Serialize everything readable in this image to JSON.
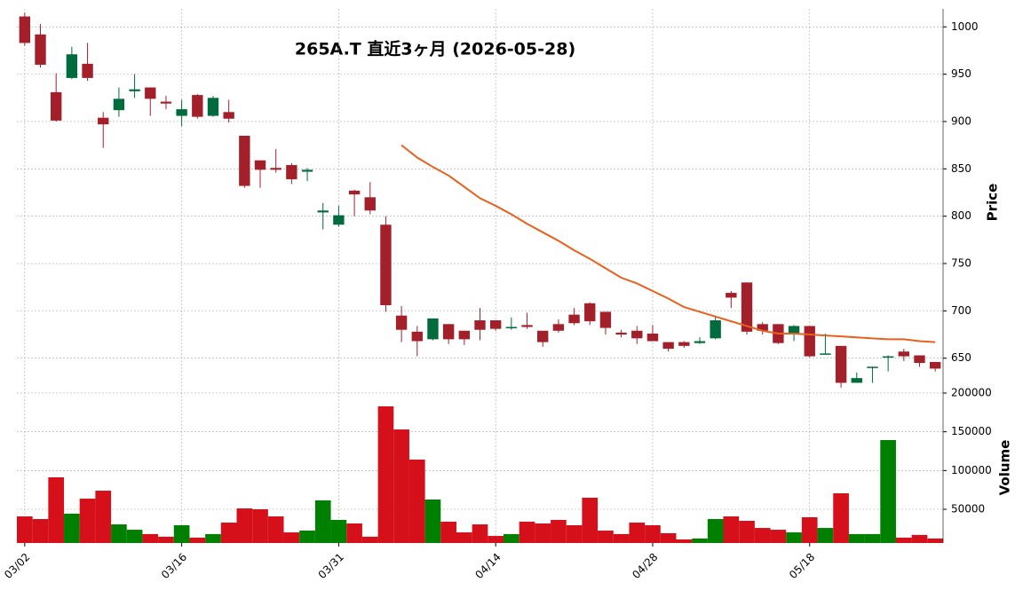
{
  "chart_data": [
    {
      "type": "candlestick",
      "title": "265A.T 直近3ヶ月 (2026-05-28)",
      "ylabel": "Price",
      "categories": [
        "03/02",
        null,
        null,
        null,
        null,
        null,
        null,
        null,
        null,
        null,
        "03/16",
        null,
        null,
        null,
        null,
        null,
        null,
        null,
        null,
        null,
        "03/31",
        null,
        null,
        null,
        null,
        null,
        null,
        null,
        null,
        null,
        "04/14",
        null,
        null,
        null,
        null,
        null,
        null,
        null,
        null,
        null,
        "04/28",
        null,
        null,
        null,
        null,
        null,
        null,
        null,
        null,
        null,
        "05/18",
        null,
        null,
        null,
        null,
        null,
        null,
        null,
        null
      ],
      "open": [
        1011,
        992,
        931,
        946,
        961,
        904,
        912,
        932,
        936,
        921,
        906,
        928,
        906,
        910,
        885,
        859,
        851,
        854,
        847,
        804,
        791,
        827,
        820,
        791,
        695,
        678,
        670,
        686,
        679,
        690,
        690,
        682,
        685,
        679,
        686,
        696,
        708,
        699,
        677,
        679,
        676,
        667,
        667,
        666,
        671,
        719,
        730,
        686,
        686,
        676,
        684,
        654,
        663,
        624,
        640,
        651,
        657,
        653,
        646
      ],
      "high": [
        1015,
        1003,
        951,
        979,
        983,
        910,
        936,
        950,
        936,
        927,
        923,
        929,
        927,
        923,
        885,
        859,
        871,
        856,
        851,
        814,
        811,
        828,
        836,
        800,
        705,
        684,
        692,
        686,
        679,
        703,
        690,
        693,
        698,
        679,
        691,
        703,
        709,
        699,
        680,
        684,
        685,
        667,
        668,
        672,
        695,
        721,
        730,
        688,
        686,
        685,
        684,
        676,
        663,
        635,
        641,
        653,
        660,
        653,
        646
      ],
      "low": [
        980,
        957,
        900,
        945,
        943,
        872,
        905,
        925,
        906,
        913,
        895,
        903,
        905,
        899,
        830,
        830,
        846,
        834,
        837,
        786,
        789,
        800,
        802,
        699,
        667,
        652,
        669,
        665,
        664,
        669,
        679,
        680,
        681,
        662,
        677,
        685,
        685,
        675,
        672,
        665,
        668,
        657,
        661,
        665,
        670,
        703,
        675,
        675,
        665,
        668,
        651,
        654,
        619,
        624,
        624,
        636,
        647,
        641,
        636
      ],
      "close": [
        983,
        960,
        901,
        971,
        946,
        897,
        924,
        934,
        924,
        919,
        913,
        905,
        925,
        903,
        832,
        849,
        849,
        839,
        849,
        806,
        801,
        823,
        806,
        706,
        680,
        668,
        692,
        670,
        670,
        680,
        681,
        683,
        683,
        667,
        679,
        687,
        689,
        682,
        675,
        671,
        668,
        660,
        663,
        668,
        690,
        714,
        678,
        679,
        666,
        684,
        652,
        655,
        624,
        629,
        641,
        652,
        652,
        645,
        639
      ],
      "up_color": "#006b3c",
      "down_color": "#a3202b",
      "ma": {
        "color": "#e8601c",
        "values": [
          null,
          null,
          null,
          null,
          null,
          null,
          null,
          null,
          null,
          null,
          null,
          null,
          null,
          null,
          null,
          null,
          null,
          null,
          null,
          null,
          null,
          null,
          null,
          null,
          875,
          862,
          852,
          843,
          831,
          819,
          811,
          802,
          792,
          783,
          774,
          764,
          755,
          745,
          735,
          729,
          721,
          713,
          704,
          699,
          694,
          689,
          684,
          679,
          676,
          676,
          675,
          674,
          673,
          672,
          671,
          670,
          670,
          668,
          667
        ]
      },
      "ylim": [
        616,
        1019
      ],
      "yticks": [
        650,
        700,
        750,
        800,
        850,
        900,
        950,
        1000
      ],
      "grid": true
    },
    {
      "type": "bar",
      "ylabel": "Volume",
      "values": [
        40800,
        37400,
        91200,
        44300,
        63700,
        74000,
        30500,
        23600,
        18000,
        14600,
        29400,
        13400,
        18000,
        32800,
        51100,
        50000,
        40800,
        20200,
        22500,
        61500,
        36300,
        31700,
        14600,
        182800,
        153000,
        114100,
        62600,
        34000,
        20200,
        30500,
        15600,
        18000,
        34000,
        31700,
        36300,
        29400,
        64900,
        22500,
        18000,
        32800,
        29400,
        19100,
        11100,
        12300,
        37400,
        40800,
        35100,
        25900,
        23600,
        20200,
        39700,
        25900,
        70600,
        18000,
        18000,
        139300,
        13400,
        16900,
        12300
      ],
      "up_color": "#008000",
      "down_color": "#d5101b",
      "ylim": [
        6500,
        203400
      ],
      "yticks": [
        50000,
        100000,
        150000,
        200000
      ],
      "grid": true
    }
  ]
}
